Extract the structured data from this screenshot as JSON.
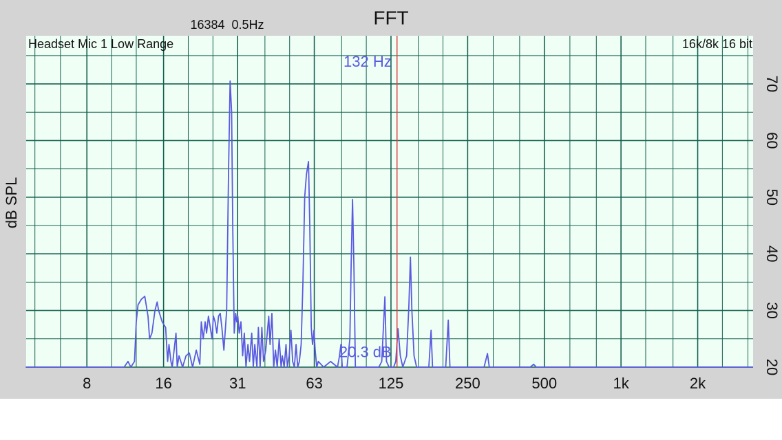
{
  "chart_data": {
    "type": "line",
    "title": "FFT",
    "subtitle": "16384  0.5Hz",
    "annotation_left": "Headset Mic 1 Low Range",
    "annotation_right": "16k/8k 16 bit",
    "ylabel": "dB SPL",
    "xscale": "log",
    "xlim": [
      4.62,
      3300
    ],
    "ylim": [
      20,
      78.5
    ],
    "xticks": [
      8,
      16,
      {
        "value": 31.25,
        "label": "31"
      },
      {
        "value": 62.5,
        "label": "63"
      },
      125,
      250,
      500,
      {
        "value": 1000,
        "label": "1k"
      },
      {
        "value": 2000,
        "label": "2k"
      }
    ],
    "xminorticks": [
      5,
      6.3,
      10,
      12.5,
      20,
      25,
      40,
      50,
      80,
      100,
      160,
      200,
      315,
      400,
      630,
      800,
      1250,
      1600,
      2500,
      3150
    ],
    "yticks": [
      20,
      30,
      40,
      50,
      60,
      70
    ],
    "yminorticks": [
      25,
      35,
      45,
      55,
      65,
      75
    ],
    "grid": true,
    "cursor": {
      "x": 132,
      "x_label": "132 Hz",
      "y": 20.3,
      "y_label": "20.3 dB",
      "color": "#e04040"
    },
    "x": [
      4.6,
      11.2,
      11.6,
      11.9,
      12.3,
      12.5,
      12.7,
      13.1,
      13.5,
      13.9,
      14.1,
      14.4,
      14.8,
      15.1,
      15.3,
      15.8,
      16.3,
      16.6,
      16.8,
      17.1,
      17.3,
      17.9,
      18.1,
      18.4,
      19.0,
      19.6,
      20.2,
      20.8,
      21.5,
      22.2,
      22.5,
      22.9,
      23.3,
      23.6,
      24.0,
      24.4,
      24.8,
      25.1,
      25.5,
      25.9,
      26.3,
      26.7,
      27.1,
      27.6,
      28.0,
      28.3,
      28.8,
      29.2,
      29.6,
      29.9,
      30.3,
      30.7,
      31.0,
      31.3,
      31.7,
      32.2,
      32.7,
      33.2,
      33.7,
      34.3,
      34.8,
      35.5,
      36.0,
      36.5,
      37.2,
      37.7,
      38.3,
      38.9,
      39.5,
      40.3,
      41.4,
      41.9,
      42.6,
      43.3,
      44.0,
      44.7,
      45.5,
      46.3,
      46.8,
      47.6,
      48.4,
      49.0,
      49.8,
      50.6,
      51.4,
      52.2,
      53.0,
      53.8,
      54.6,
      55.5,
      56.4,
      57.3,
      58.2,
      59.3,
      60.0,
      60.8,
      61.5,
      62.3,
      63.0,
      63.9,
      64.8,
      68.0,
      72.4,
      77.1,
      78.5,
      79.5,
      80.5,
      84,
      86.2,
      87.2,
      88.3,
      89.4,
      90.6,
      112,
      115,
      118.3,
      120,
      122.9,
      128,
      130.5,
      133.2,
      136,
      139.1,
      144,
      147,
      149.0,
      151,
      154,
      157.6,
      176,
      179.6,
      182,
      205,
      209.8,
      213,
      290,
      299.0,
      304,
      440,
      453.8,
      465,
      3300
    ],
    "series": [
      {
        "color": "#5a5ae0",
        "values": [
          20,
          20,
          21,
          20,
          21,
          28,
          31,
          32,
          32.5,
          29,
          25,
          26,
          30,
          31.5,
          30,
          28,
          27,
          21,
          24,
          21,
          20,
          26,
          20,
          22,
          20,
          22,
          22.5,
          20,
          23,
          20.5,
          28,
          25,
          28,
          26,
          29,
          27,
          25,
          29,
          28,
          26,
          29,
          29.5,
          27,
          23,
          27,
          30,
          55,
          70.5,
          65,
          45,
          26,
          29.5,
          28,
          29,
          26,
          28,
          22,
          26,
          20,
          24,
          21,
          26,
          20,
          24,
          20,
          27,
          20,
          27,
          21,
          23,
          29,
          24,
          29.5,
          20,
          23,
          20,
          25,
          20,
          22,
          20,
          24,
          20,
          22,
          26.5,
          21,
          20,
          24,
          20,
          21,
          24,
          35,
          50,
          54,
          56.3,
          45,
          27,
          24,
          26.5,
          23,
          20,
          21,
          20,
          21,
          20,
          22,
          24,
          20,
          20,
          25,
          38,
          49.6,
          38,
          20,
          20,
          21,
          32.4,
          21,
          20,
          20,
          21,
          26.8,
          22,
          20,
          22,
          31,
          39.4,
          30,
          22,
          20,
          20,
          26.5,
          20,
          20,
          28.3,
          20,
          20,
          22.4,
          20,
          20,
          20.5,
          20,
          20
        ]
      }
    ]
  }
}
